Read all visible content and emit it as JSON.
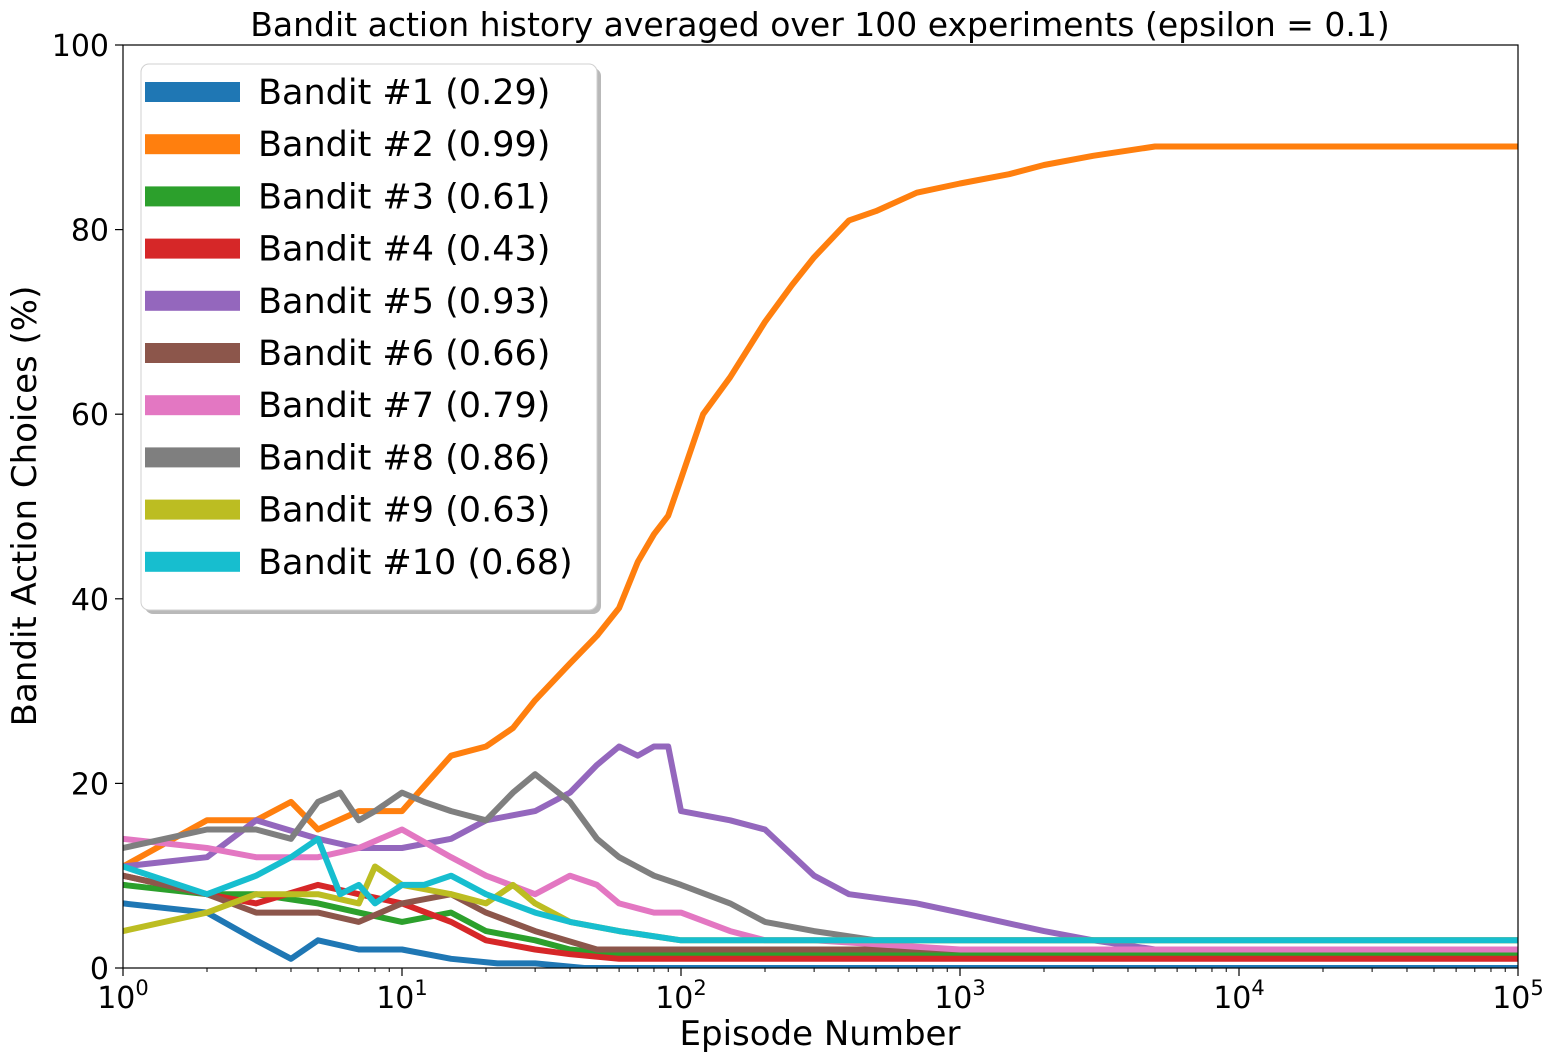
{
  "chart_data": {
    "type": "line",
    "title": "Bandit action history averaged over 100 experiments (epsilon = 0.1)",
    "xlabel": "Episode Number",
    "ylabel": "Bandit Action Choices (%)",
    "xscale": "log",
    "xlim": [
      1,
      100000
    ],
    "ylim": [
      0,
      100
    ],
    "xticks": [
      {
        "value": 1,
        "base": "10",
        "exp": "0"
      },
      {
        "value": 10,
        "base": "10",
        "exp": "1"
      },
      {
        "value": 100,
        "base": "10",
        "exp": "2"
      },
      {
        "value": 1000,
        "base": "10",
        "exp": "3"
      },
      {
        "value": 10000,
        "base": "10",
        "exp": "4"
      },
      {
        "value": 100000,
        "base": "10",
        "exp": "5"
      }
    ],
    "yticks": [
      {
        "value": 0,
        "label": "0"
      },
      {
        "value": 20,
        "label": "20"
      },
      {
        "value": 40,
        "label": "40"
      },
      {
        "value": 60,
        "label": "60"
      },
      {
        "value": 80,
        "label": "80"
      },
      {
        "value": 100,
        "label": "100"
      }
    ],
    "grid": false,
    "legend_position": "upper-left",
    "series": [
      {
        "name": "Bandit #1 (0.29)",
        "color": "#1f77b4",
        "x": [
          1,
          2,
          3,
          4,
          5,
          7,
          10,
          15,
          22,
          30,
          45,
          100000
        ],
        "y": [
          7,
          6,
          3,
          1,
          3,
          2,
          2,
          1,
          0.5,
          0.5,
          0,
          0
        ]
      },
      {
        "name": "Bandit #2 (0.99)",
        "color": "#ff7f0e",
        "x": [
          1,
          2,
          3,
          4,
          5,
          7,
          10,
          15,
          20,
          25,
          30,
          40,
          50,
          60,
          70,
          80,
          90,
          100,
          120,
          150,
          200,
          250,
          300,
          400,
          500,
          700,
          1000,
          1500,
          2000,
          3000,
          5000,
          10000,
          20000,
          50000,
          100000
        ],
        "y": [
          11,
          16,
          16,
          18,
          15,
          17,
          17,
          23,
          24,
          26,
          29,
          33,
          36,
          39,
          44,
          47,
          49,
          53,
          60,
          64,
          70,
          74,
          77,
          81,
          82,
          84,
          85,
          86,
          87,
          88,
          89,
          89,
          89,
          89,
          89
        ]
      },
      {
        "name": "Bandit #3 (0.61)",
        "color": "#2ca02c",
        "x": [
          1,
          2,
          3,
          5,
          7,
          10,
          15,
          20,
          30,
          40,
          60,
          100,
          300,
          1000,
          100000
        ],
        "y": [
          9,
          8,
          8,
          7,
          6,
          5,
          6,
          4,
          3,
          2,
          1.5,
          1.5,
          1.5,
          1.5,
          1.5
        ]
      },
      {
        "name": "Bandit #4 (0.43)",
        "color": "#d62728",
        "x": [
          1,
          2,
          3,
          5,
          7,
          10,
          15,
          20,
          30,
          40,
          60,
          100,
          1000,
          100000
        ],
        "y": [
          10,
          8,
          7,
          9,
          8,
          7,
          5,
          3,
          2,
          1.5,
          1,
          1,
          1,
          1
        ]
      },
      {
        "name": "Bandit #5 (0.93)",
        "color": "#9467bd",
        "x": [
          1,
          2,
          3,
          5,
          7,
          10,
          15,
          20,
          30,
          40,
          50,
          60,
          70,
          80,
          90,
          100,
          150,
          200,
          300,
          400,
          700,
          1000,
          2000,
          3000,
          5000,
          10000,
          100000
        ],
        "y": [
          11,
          12,
          16,
          14,
          13,
          13,
          14,
          16,
          17,
          19,
          22,
          24,
          23,
          24,
          24,
          17,
          16,
          15,
          10,
          8,
          7,
          6,
          4,
          3,
          2,
          2,
          2
        ]
      },
      {
        "name": "Bandit #6 (0.66)",
        "color": "#8c564b",
        "x": [
          1,
          2,
          3,
          5,
          7,
          10,
          15,
          20,
          30,
          50,
          100,
          300,
          1000,
          100000
        ],
        "y": [
          10,
          8,
          6,
          6,
          5,
          7,
          8,
          6,
          4,
          2,
          2,
          2,
          2,
          2
        ]
      },
      {
        "name": "Bandit #7 (0.79)",
        "color": "#e377c2",
        "x": [
          1,
          2,
          3,
          5,
          7,
          10,
          15,
          20,
          30,
          40,
          50,
          60,
          80,
          100,
          150,
          200,
          300,
          1000,
          100000
        ],
        "y": [
          14,
          13,
          12,
          12,
          13,
          15,
          12,
          10,
          8,
          10,
          9,
          7,
          6,
          6,
          4,
          3,
          3,
          2,
          2
        ]
      },
      {
        "name": "Bandit #8 (0.86)",
        "color": "#7f7f7f",
        "x": [
          1,
          2,
          3,
          4,
          5,
          6,
          7,
          8,
          10,
          12,
          15,
          20,
          25,
          30,
          40,
          50,
          60,
          80,
          100,
          150,
          200,
          300,
          500,
          1000,
          100000
        ],
        "y": [
          13,
          15,
          15,
          14,
          18,
          19,
          16,
          17,
          19,
          18,
          17,
          16,
          19,
          21,
          18,
          14,
          12,
          10,
          9,
          7,
          5,
          4,
          3,
          3,
          3
        ]
      },
      {
        "name": "Bandit #9 (0.63)",
        "color": "#bcbd22",
        "x": [
          1,
          2,
          3,
          4,
          5,
          7,
          8,
          10,
          15,
          20,
          25,
          30,
          40,
          60,
          100,
          300,
          1000,
          100000
        ],
        "y": [
          4,
          6,
          8,
          8,
          8,
          7,
          11,
          9,
          8,
          7,
          9,
          7,
          5,
          4,
          3,
          3,
          3,
          3
        ]
      },
      {
        "name": "Bandit #10 (0.68)",
        "color": "#17becf",
        "x": [
          1,
          2,
          3,
          4,
          5,
          6,
          7,
          8,
          10,
          12,
          15,
          20,
          30,
          40,
          60,
          100,
          300,
          1000,
          100000
        ],
        "y": [
          11,
          8,
          10,
          12,
          14,
          8,
          9,
          7,
          9,
          9,
          10,
          8,
          6,
          5,
          4,
          3,
          3,
          3,
          3
        ]
      }
    ]
  }
}
